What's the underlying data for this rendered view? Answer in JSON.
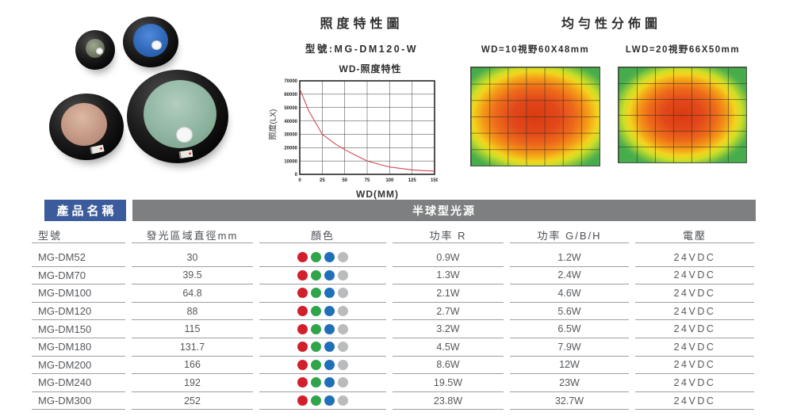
{
  "hero": {
    "domes": [
      {
        "name": "small gray-green dome light"
      },
      {
        "name": "blue dome light"
      },
      {
        "name": "tan dome light"
      },
      {
        "name": "large green dome light"
      }
    ]
  },
  "illuminance": {
    "title": "照度特性圖",
    "model": "型號:MG-DM120-W",
    "chart_title": "WD-照度特性",
    "xlabel": "WD(MM)",
    "ylabel": "照度(LX)"
  },
  "uniformity": {
    "title": "均勻性分佈圖",
    "maps": [
      {
        "label": "WD=10視野60X48mm"
      },
      {
        "label": "LWD=20視野66X50mm"
      }
    ]
  },
  "table": {
    "product_name_label": "產品名稱",
    "category_label": "半球型光源",
    "columns": [
      "型號",
      "發光區域直徑mm",
      "顏色",
      "功率 R",
      "功率 G/B/H",
      "電壓"
    ],
    "dot_colors": [
      "#d1202c",
      "#2fa44a",
      "#1f70b8",
      "#b9bbbd"
    ],
    "dot_names": [
      "red",
      "green",
      "blue",
      "gray"
    ],
    "rows": [
      {
        "model": "MG-DM52",
        "diameter": "30",
        "power_r": "0.9W",
        "power_gbh": "1.2W",
        "voltage": "24VDC"
      },
      {
        "model": "MG-DM70",
        "diameter": "39.5",
        "power_r": "1.3W",
        "power_gbh": "2.4W",
        "voltage": "24VDC"
      },
      {
        "model": "MG-DM100",
        "diameter": "64.8",
        "power_r": "2.1W",
        "power_gbh": "4.6W",
        "voltage": "24VDC"
      },
      {
        "model": "MG-DM120",
        "diameter": "88",
        "power_r": "2.7W",
        "power_gbh": "5.6W",
        "voltage": "24VDC"
      },
      {
        "model": "MG-DM150",
        "diameter": "115",
        "power_r": "3.2W",
        "power_gbh": "6.5W",
        "voltage": "24VDC"
      },
      {
        "model": "MG-DM180",
        "diameter": "131.7",
        "power_r": "4.5W",
        "power_gbh": "7.9W",
        "voltage": "24VDC"
      },
      {
        "model": "MG-DM200",
        "diameter": "166",
        "power_r": "8.6W",
        "power_gbh": "12W",
        "voltage": "24VDC"
      },
      {
        "model": "MG-DM240",
        "diameter": "192",
        "power_r": "19.5W",
        "power_gbh": "23W",
        "voltage": "24VDC"
      },
      {
        "model": "MG-DM300",
        "diameter": "252",
        "power_r": "23.8W",
        "power_gbh": "32.7W",
        "voltage": "24VDC"
      }
    ],
    "colors": {
      "header_blue": "#3c5b9d",
      "header_gray": "#7d7f80"
    }
  },
  "chart_data": {
    "type": "line",
    "title": "WD-照度特性",
    "xlabel": "WD(MM)",
    "ylabel": "照度(LX)",
    "xlim": [
      0,
      150
    ],
    "ylim": [
      0,
      70000
    ],
    "xticks": [
      0,
      25,
      50,
      75,
      100,
      125,
      150
    ],
    "yticks": [
      0,
      10000,
      20000,
      30000,
      40000,
      50000,
      60000,
      70000
    ],
    "grid": true,
    "legend": false,
    "series": [
      {
        "name": "MG-DM120-W",
        "color": "#d0484e",
        "points": [
          [
            0,
            64000
          ],
          [
            10,
            47500
          ],
          [
            25,
            30000
          ],
          [
            40,
            22500
          ],
          [
            50,
            18500
          ],
          [
            60,
            15000
          ],
          [
            75,
            10000
          ],
          [
            90,
            7200
          ],
          [
            100,
            5500
          ],
          [
            115,
            4200
          ],
          [
            125,
            3300
          ],
          [
            140,
            2700
          ],
          [
            150,
            2400
          ]
        ]
      }
    ]
  }
}
